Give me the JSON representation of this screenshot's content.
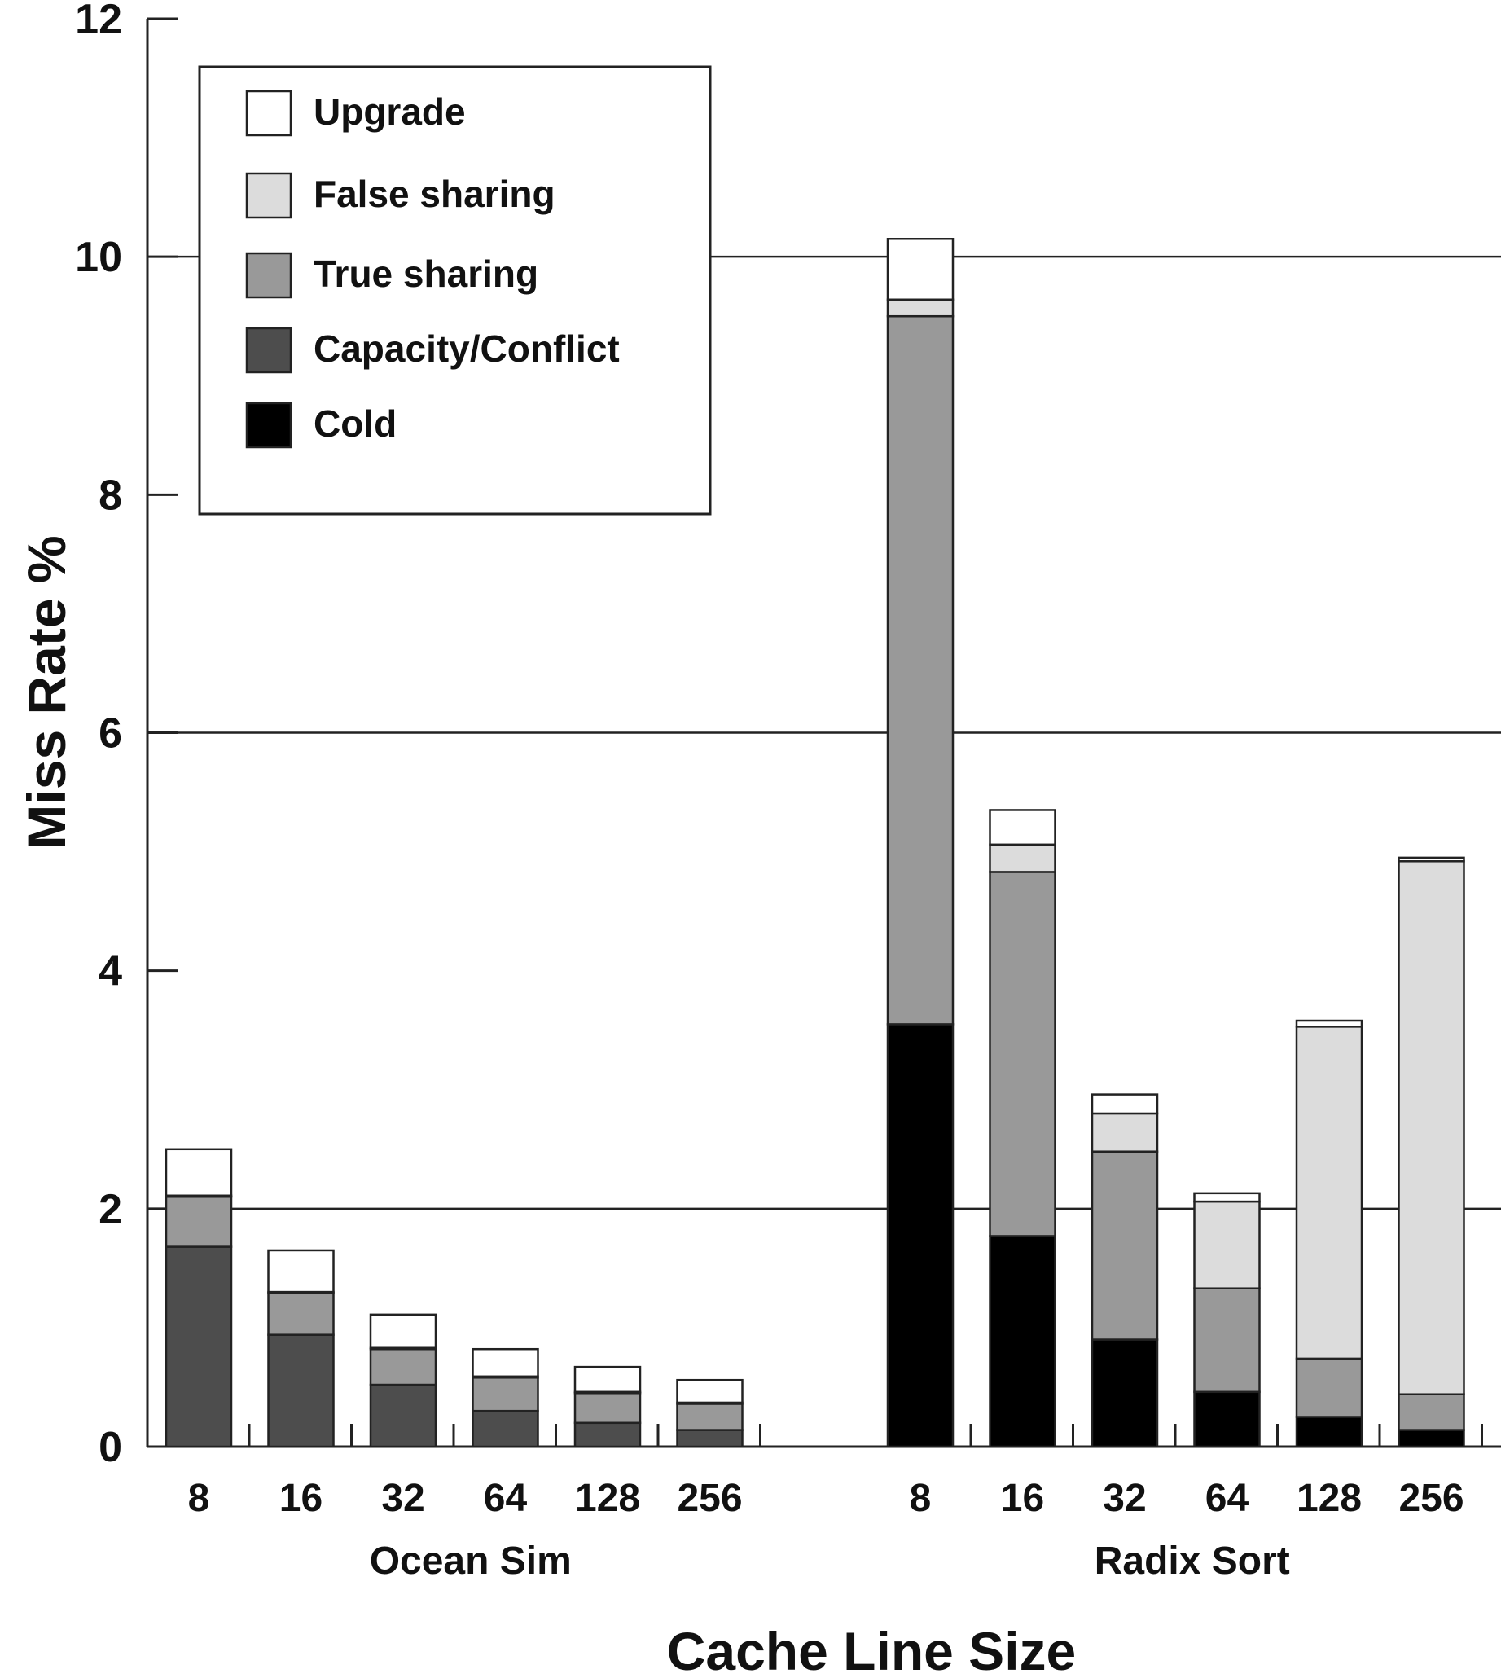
{
  "chart_data": {
    "type": "bar",
    "stacked": true,
    "xlabel": "Cache Line Size",
    "ylabel": "Miss Rate %",
    "ylim": [
      0,
      12
    ],
    "yticks": [
      "0",
      "2",
      "4",
      "6",
      "8",
      "10",
      "12"
    ],
    "grid_y": [
      2,
      6,
      10
    ],
    "legend_position": "top-left",
    "groups": [
      {
        "name": "Ocean Sim",
        "categories": [
          "8",
          "16",
          "32",
          "64",
          "128",
          "256"
        ],
        "series": [
          {
            "name": "Cold",
            "values": [
              0,
              0,
              0,
              0,
              0,
              0
            ]
          },
          {
            "name": "Capacity/Conflict",
            "values": [
              1.68,
              0.94,
              0.52,
              0.3,
              0.2,
              0.14
            ]
          },
          {
            "name": "True sharing",
            "values": [
              0.42,
              0.35,
              0.3,
              0.28,
              0.25,
              0.22
            ]
          },
          {
            "name": "False sharing",
            "values": [
              0.01,
              0.01,
              0.01,
              0.01,
              0.01,
              0.01
            ]
          },
          {
            "name": "Upgrade",
            "values": [
              0.39,
              0.35,
              0.28,
              0.23,
              0.21,
              0.19
            ]
          }
        ]
      },
      {
        "name": "Radix Sort",
        "categories": [
          "8",
          "16",
          "32",
          "64",
          "128",
          "256"
        ],
        "series": [
          {
            "name": "Cold",
            "values": [
              3.55,
              1.77,
              0.9,
              0.46,
              0.25,
              0.14
            ]
          },
          {
            "name": "Capacity/Conflict",
            "values": [
              0,
              0,
              0,
              0,
              0,
              0
            ]
          },
          {
            "name": "True sharing",
            "values": [
              5.95,
              3.06,
              1.58,
              0.87,
              0.49,
              0.3
            ]
          },
          {
            "name": "False sharing",
            "values": [
              0.14,
              0.23,
              0.32,
              0.73,
              2.79,
              4.48
            ]
          },
          {
            "name": "Upgrade",
            "values": [
              0.51,
              0.29,
              0.16,
              0.07,
              0.05,
              0.03
            ]
          }
        ]
      }
    ],
    "legend": [
      "Upgrade",
      "False sharing",
      "True sharing",
      "Capacity/Conflict",
      "Cold"
    ],
    "colors": {
      "Cold": "#000000",
      "Capacity/Conflict": "#4d4d4d",
      "True sharing": "#999999",
      "False sharing": "#dcdcdc",
      "Upgrade": "#ffffff"
    }
  }
}
